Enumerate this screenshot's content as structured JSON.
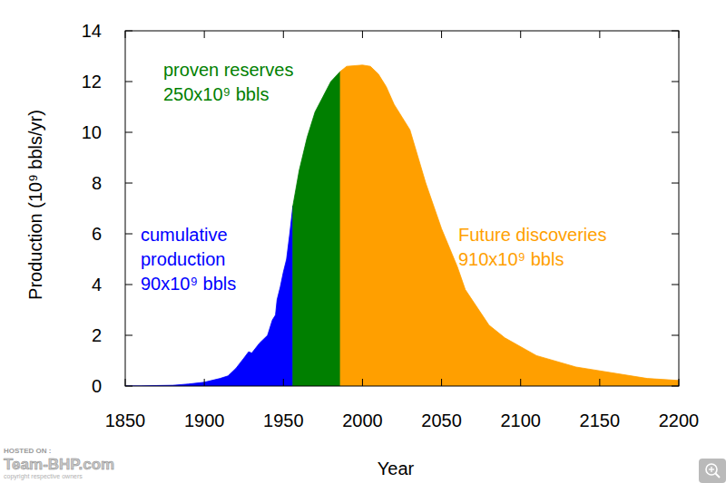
{
  "chart_data": {
    "type": "area",
    "x_label": "Year",
    "y_label": "Production (10⁹ bbls/yr)",
    "x": [
      1850,
      1860,
      1870,
      1880,
      1890,
      1900,
      1910,
      1915,
      1920,
      1925,
      1928,
      1930,
      1935,
      1940,
      1943,
      1945,
      1946,
      1948,
      1950,
      1952,
      1954,
      1956,
      1960,
      1965,
      1970,
      1975,
      1980,
      1986,
      1990,
      2000,
      2005,
      2010,
      2015,
      2020,
      2030,
      2040,
      2050,
      2060,
      2065,
      2080,
      2090,
      2110,
      2135,
      2150,
      2180,
      2200
    ],
    "series": [
      {
        "name": "cumulative\nproduction\n90x10⁹ bbls",
        "color": "#0000ff",
        "values": [
          0,
          0,
          0.02,
          0.03,
          0.08,
          0.15,
          0.3,
          0.4,
          0.7,
          1.1,
          1.35,
          1.3,
          1.7,
          2.0,
          2.6,
          2.8,
          3.4,
          3.9,
          4.5,
          5.0,
          6.0,
          7.1,
          null,
          null,
          null,
          null,
          null,
          null,
          null,
          null,
          null,
          null,
          null,
          null,
          null,
          null,
          null,
          null,
          null,
          null,
          null,
          null,
          null,
          null,
          null,
          null
        ]
      },
      {
        "name": "proven reserves\n250x10⁹ bbls",
        "color": "#007f00",
        "values": [
          null,
          null,
          null,
          null,
          null,
          null,
          null,
          null,
          null,
          null,
          null,
          null,
          null,
          null,
          null,
          null,
          null,
          null,
          null,
          null,
          null,
          7.1,
          8.5,
          9.8,
          10.8,
          11.4,
          12.0,
          12.4,
          null,
          null,
          null,
          null,
          null,
          null,
          null,
          null,
          null,
          null,
          null,
          null,
          null,
          null,
          null,
          null,
          null,
          null
        ]
      },
      {
        "name": "Future discoveries\n910x10⁹ bbls",
        "color": "#ff9f00",
        "values": [
          null,
          null,
          null,
          null,
          null,
          null,
          null,
          null,
          null,
          null,
          null,
          null,
          null,
          null,
          null,
          null,
          null,
          null,
          null,
          null,
          null,
          null,
          null,
          null,
          null,
          null,
          null,
          12.4,
          12.6,
          12.65,
          12.6,
          12.3,
          11.8,
          11.1,
          10.1,
          8.0,
          6.2,
          4.7,
          3.8,
          2.4,
          1.9,
          1.2,
          0.75,
          0.6,
          0.3,
          0.22
        ]
      }
    ],
    "xlim": [
      1850,
      2200
    ],
    "xticks": [
      1850,
      1900,
      1950,
      2000,
      2050,
      2100,
      2150,
      2200
    ],
    "ylim": [
      0,
      14
    ],
    "yticks": [
      0,
      2,
      4,
      6,
      8,
      10,
      12,
      14
    ],
    "grid": false,
    "watermark": [
      "HOSTED ON :",
      "Team-BHP.com",
      "copyright respective owners"
    ]
  }
}
